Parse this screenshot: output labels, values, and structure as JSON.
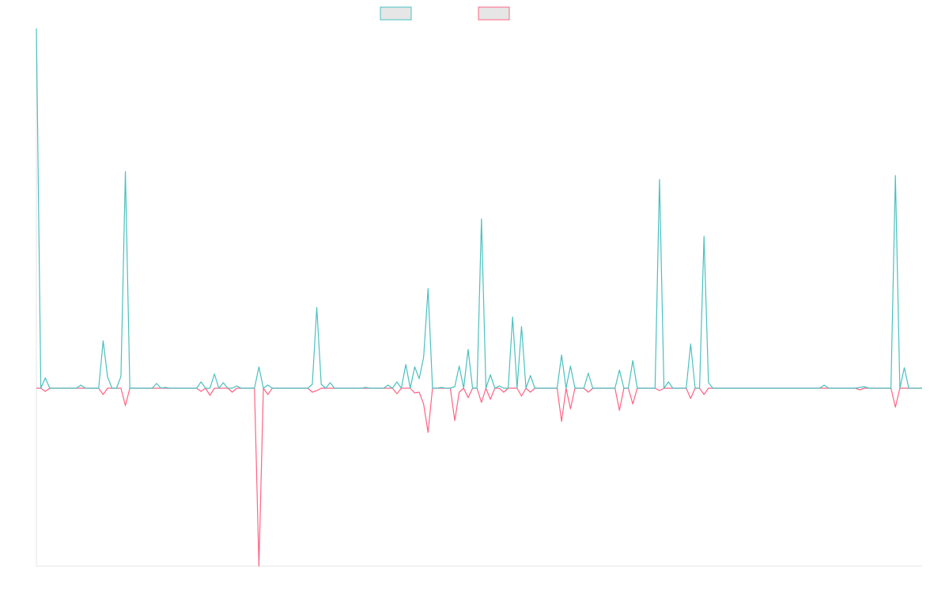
{
  "chart_data": {
    "type": "line",
    "ylim": [
      -225,
      455
    ],
    "legend": "top",
    "series": [
      {
        "color": "#4bc0c0",
        "values": [
          455,
          0,
          13,
          0,
          0,
          0,
          0,
          0,
          0,
          0,
          4,
          0,
          0,
          0,
          0,
          60,
          14,
          0,
          0,
          15,
          274,
          0,
          0,
          0,
          0,
          0,
          0,
          6,
          0,
          1,
          0,
          0,
          0,
          0,
          0,
          0,
          0,
          8,
          0,
          0,
          18,
          0,
          7,
          0,
          0,
          3,
          0,
          0,
          0,
          0,
          27,
          0,
          4,
          0,
          0,
          0,
          0,
          0,
          0,
          0,
          0,
          0,
          5,
          102,
          5,
          0,
          7,
          0,
          0,
          0,
          0,
          0,
          0,
          0,
          1,
          0,
          0,
          0,
          0,
          4,
          0,
          8,
          0,
          30,
          0,
          27,
          12,
          39,
          126,
          0,
          0,
          1,
          0,
          0,
          2,
          28,
          0,
          49,
          0,
          0,
          214,
          0,
          17,
          0,
          3,
          0,
          0,
          90,
          0,
          78,
          0,
          16,
          0,
          0,
          0,
          0,
          0,
          0,
          42,
          0,
          28,
          0,
          0,
          0,
          19,
          0,
          0,
          0,
          0,
          0,
          0,
          23,
          0,
          0,
          35,
          0,
          0,
          0,
          0,
          0,
          264,
          0,
          8,
          0,
          0,
          0,
          0,
          56,
          0,
          0,
          192,
          7,
          0,
          0,
          0,
          0,
          0,
          0,
          0,
          0,
          0,
          0,
          0,
          0,
          0,
          0,
          0,
          0,
          0,
          0,
          0,
          0,
          0,
          0,
          0,
          0,
          0,
          4,
          0,
          0,
          0,
          0,
          0,
          0,
          0,
          1,
          2,
          0,
          0,
          0,
          0,
          0,
          0,
          269,
          0,
          26,
          0,
          0,
          0,
          0
        ]
      },
      {
        "color": "#ff6384",
        "values": [
          0,
          0,
          -4,
          0,
          0,
          0,
          0,
          0,
          0,
          0,
          0,
          0,
          0,
          0,
          0,
          -8,
          0,
          0,
          0,
          0,
          -22,
          0,
          0,
          0,
          0,
          0,
          0,
          0,
          0,
          0,
          0,
          0,
          0,
          0,
          0,
          0,
          0,
          -4,
          0,
          -9,
          0,
          0,
          0,
          0,
          -5,
          0,
          0,
          0,
          0,
          0,
          -225,
          0,
          -8,
          0,
          0,
          0,
          0,
          0,
          0,
          0,
          0,
          0,
          -5,
          -3,
          0,
          0,
          0,
          0,
          0,
          0,
          0,
          0,
          0,
          0,
          0,
          0,
          0,
          0,
          0,
          0,
          0,
          -7,
          0,
          0,
          0,
          -6,
          -5,
          -20,
          -56,
          0,
          0,
          0,
          0,
          0,
          -41,
          -5,
          0,
          -12,
          0,
          0,
          -18,
          0,
          -14,
          0,
          0,
          -5,
          0,
          0,
          0,
          -10,
          0,
          -5,
          0,
          0,
          0,
          0,
          0,
          0,
          -42,
          0,
          -26,
          0,
          0,
          0,
          -5,
          0,
          0,
          0,
          0,
          0,
          0,
          -28,
          0,
          0,
          -20,
          0,
          0,
          0,
          0,
          0,
          -3,
          0,
          0,
          0,
          0,
          0,
          0,
          -13,
          0,
          0,
          -8,
          0,
          0,
          0,
          0,
          0,
          0,
          0,
          0,
          0,
          0,
          0,
          0,
          0,
          0,
          0,
          0,
          0,
          0,
          0,
          0,
          0,
          0,
          0,
          0,
          0,
          0,
          0,
          0,
          0,
          0,
          0,
          0,
          0,
          0,
          -2,
          0,
          0,
          0,
          0,
          0,
          0,
          0,
          -24,
          0,
          0,
          0,
          0,
          0,
          0
        ]
      }
    ]
  }
}
